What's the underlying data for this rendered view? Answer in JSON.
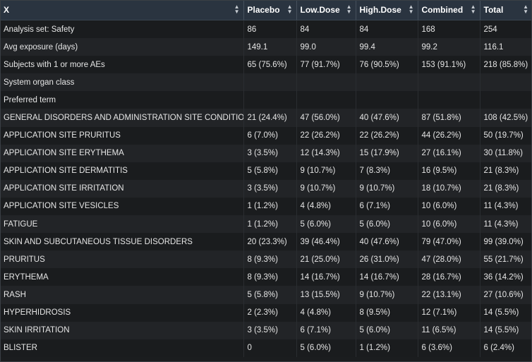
{
  "headers": [
    "X",
    "Placebo",
    "Low.Dose",
    "High.Dose",
    "Combined",
    "Total"
  ],
  "sort_icon": "sort-arrows-icon",
  "rows": [
    [
      "Analysis set: Safety",
      "86",
      "84",
      "84",
      "168",
      "254"
    ],
    [
      "Avg exposure (days)",
      "149.1",
      "99.0",
      "99.4",
      "99.2",
      "116.1"
    ],
    [
      "Subjects with 1 or more AEs",
      "65 (75.6%)",
      "77 (91.7%)",
      "76 (90.5%)",
      "153 (91.1%)",
      "218 (85.8%)"
    ],
    [
      "System organ class",
      "",
      "",
      "",
      "",
      ""
    ],
    [
      "Preferred term",
      "",
      "",
      "",
      "",
      ""
    ],
    [
      "GENERAL DISORDERS AND ADMINISTRATION SITE CONDITIONS",
      "21 (24.4%)",
      "47 (56.0%)",
      "40 (47.6%)",
      "87 (51.8%)",
      "108 (42.5%)"
    ],
    [
      "APPLICATION SITE PRURITUS",
      "6 (7.0%)",
      "22 (26.2%)",
      "22 (26.2%)",
      "44 (26.2%)",
      "50 (19.7%)"
    ],
    [
      "APPLICATION SITE ERYTHEMA",
      "3 (3.5%)",
      "12 (14.3%)",
      "15 (17.9%)",
      "27 (16.1%)",
      "30 (11.8%)"
    ],
    [
      "APPLICATION SITE DERMATITIS",
      "5 (5.8%)",
      "9 (10.7%)",
      "7 (8.3%)",
      "16 (9.5%)",
      "21 (8.3%)"
    ],
    [
      "APPLICATION SITE IRRITATION",
      "3 (3.5%)",
      "9 (10.7%)",
      "9 (10.7%)",
      "18 (10.7%)",
      "21 (8.3%)"
    ],
    [
      "APPLICATION SITE VESICLES",
      "1 (1.2%)",
      "4 (4.8%)",
      "6 (7.1%)",
      "10 (6.0%)",
      "11 (4.3%)"
    ],
    [
      "FATIGUE",
      "1 (1.2%)",
      "5 (6.0%)",
      "5 (6.0%)",
      "10 (6.0%)",
      "11 (4.3%)"
    ],
    [
      "SKIN AND SUBCUTANEOUS TISSUE DISORDERS",
      "20 (23.3%)",
      "39 (46.4%)",
      "40 (47.6%)",
      "79 (47.0%)",
      "99 (39.0%)"
    ],
    [
      "PRURITUS",
      "8 (9.3%)",
      "21 (25.0%)",
      "26 (31.0%)",
      "47 (28.0%)",
      "55 (21.7%)"
    ],
    [
      "ERYTHEMA",
      "8 (9.3%)",
      "14 (16.7%)",
      "14 (16.7%)",
      "28 (16.7%)",
      "36 (14.2%)"
    ],
    [
      "RASH",
      "5 (5.8%)",
      "13 (15.5%)",
      "9 (10.7%)",
      "22 (13.1%)",
      "27 (10.6%)"
    ],
    [
      "HYPERHIDROSIS",
      "2 (2.3%)",
      "4 (4.8%)",
      "8 (9.5%)",
      "12 (7.1%)",
      "14 (5.5%)"
    ],
    [
      "SKIN IRRITATION",
      "3 (3.5%)",
      "6 (7.1%)",
      "5 (6.0%)",
      "11 (6.5%)",
      "14 (5.5%)"
    ],
    [
      "BLISTER",
      "0",
      "5 (6.0%)",
      "1 (1.2%)",
      "6 (3.6%)",
      "6 (2.4%)"
    ]
  ]
}
